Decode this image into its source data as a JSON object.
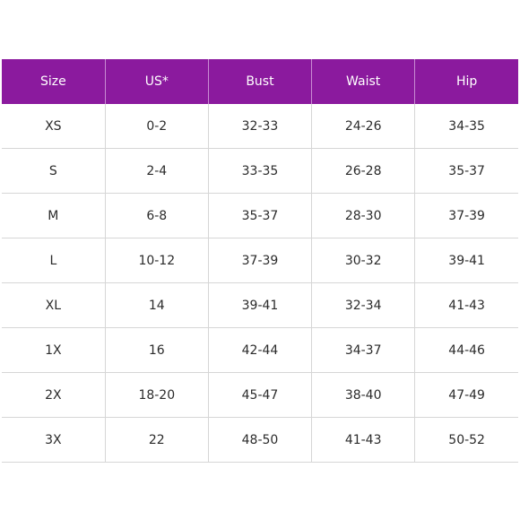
{
  "size_chart": {
    "columns": [
      "Size",
      "US*",
      "Bust",
      "Waist",
      "Hip"
    ],
    "rows": [
      [
        "XS",
        "0-2",
        "32-33",
        "24-26",
        "34-35"
      ],
      [
        "S",
        "2-4",
        "33-35",
        "26-28",
        "35-37"
      ],
      [
        "M",
        "6-8",
        "35-37",
        "28-30",
        "37-39"
      ],
      [
        "L",
        "10-12",
        "37-39",
        "30-32",
        "39-41"
      ],
      [
        "XL",
        "14",
        "39-41",
        "32-34",
        "41-43"
      ],
      [
        "1X",
        "16",
        "42-44",
        "34-37",
        "44-46"
      ],
      [
        "2X",
        "18-20",
        "45-47",
        "38-40",
        "47-49"
      ],
      [
        "3X",
        "22",
        "48-50",
        "41-43",
        "50-52"
      ]
    ]
  },
  "colors": {
    "header_background": "#8b1a9e",
    "header_text": "#ffffff",
    "grid_lines": "#d6d6d6",
    "cell_text": "#2b2b2b"
  }
}
